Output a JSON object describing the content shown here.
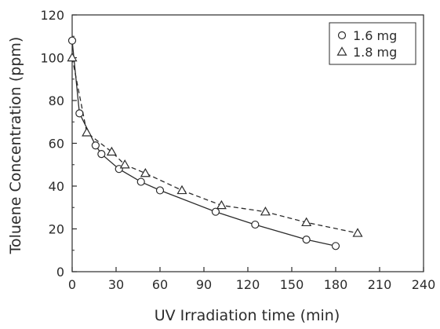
{
  "chart_data": {
    "type": "line",
    "xlabel": "UV Irradiation time (min)",
    "ylabel": "Toluene Concentration (ppm)",
    "xlim": [
      0,
      240
    ],
    "ylim": [
      0,
      120
    ],
    "x_ticks": [
      "0",
      "30",
      "60",
      "90",
      "120",
      "150",
      "180",
      "210",
      "240"
    ],
    "y_ticks": [
      "0",
      "20",
      "40",
      "60",
      "80",
      "100",
      "120"
    ],
    "grid": false,
    "legend_position": "top-right",
    "series": [
      {
        "name": "1.6 mg",
        "marker": "circle",
        "line_style": "solid",
        "x": [
          0,
          5,
          16,
          20,
          32,
          47,
          60,
          98,
          125,
          160,
          180
        ],
        "y": [
          108,
          74,
          59,
          55,
          48,
          42,
          38,
          28,
          22,
          15,
          12
        ]
      },
      {
        "name": "1.8 mg",
        "marker": "triangle",
        "line_style": "dashed",
        "x": [
          0,
          10,
          27,
          36,
          50,
          75,
          102,
          132,
          160,
          195
        ],
        "y": [
          100,
          65,
          56,
          50,
          46,
          38,
          31,
          28,
          23,
          18
        ]
      }
    ]
  }
}
